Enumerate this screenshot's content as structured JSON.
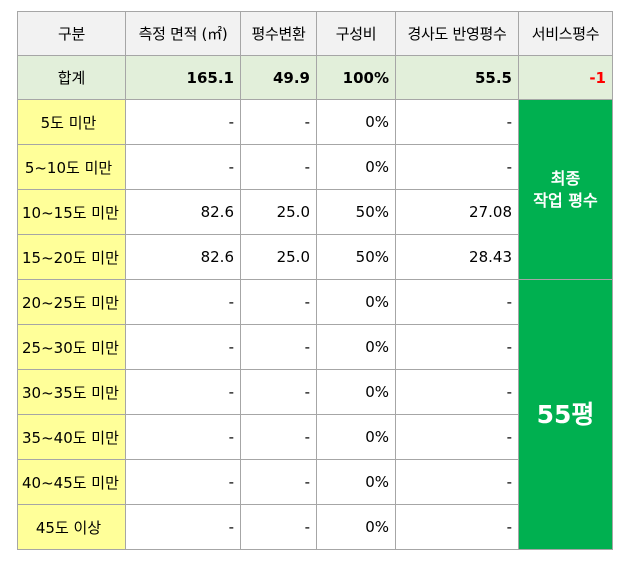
{
  "headers": [
    "구분",
    "측정 면적 (㎡)",
    "평수변환",
    "구성비",
    "경사도 반영평수",
    "서비스평수"
  ],
  "total": {
    "label": "합계",
    "area": "165.1",
    "pyeong": "49.9",
    "ratio": "100%",
    "slope_pyeong": "55.5",
    "service": "-1"
  },
  "rows": [
    {
      "label": "5도 미만",
      "area": "-",
      "pyeong": "-",
      "ratio": "0%",
      "slope_pyeong": "-"
    },
    {
      "label": "5~10도 미만",
      "area": "-",
      "pyeong": "-",
      "ratio": "0%",
      "slope_pyeong": "-"
    },
    {
      "label": "10~15도 미만",
      "area": "82.6",
      "pyeong": "25.0",
      "ratio": "50%",
      "slope_pyeong": "27.08"
    },
    {
      "label": "15~20도 미만",
      "area": "82.6",
      "pyeong": "25.0",
      "ratio": "50%",
      "slope_pyeong": "28.43"
    },
    {
      "label": "20~25도 미만",
      "area": "-",
      "pyeong": "-",
      "ratio": "0%",
      "slope_pyeong": "-"
    },
    {
      "label": "25~30도 미만",
      "area": "-",
      "pyeong": "-",
      "ratio": "0%",
      "slope_pyeong": "-"
    },
    {
      "label": "30~35도 미만",
      "area": "-",
      "pyeong": "-",
      "ratio": "0%",
      "slope_pyeong": "-"
    },
    {
      "label": "35~40도 미만",
      "area": "-",
      "pyeong": "-",
      "ratio": "0%",
      "slope_pyeong": "-"
    },
    {
      "label": "40~45도 미만",
      "area": "-",
      "pyeong": "-",
      "ratio": "0%",
      "slope_pyeong": "-"
    },
    {
      "label": "45도 이상",
      "area": "-",
      "pyeong": "-",
      "ratio": "0%",
      "slope_pyeong": "-"
    }
  ],
  "side_panel": {
    "final_label_line1": "최종",
    "final_label_line2": "작업 평수",
    "final_value": "55평"
  },
  "colors": {
    "header_bg": "#f2f2f2",
    "total_bg": "#e2efda",
    "label_bg": "#ffff99",
    "side_bg": "#00b050",
    "negative": "#ff0000",
    "border": "#a6a6a6"
  }
}
